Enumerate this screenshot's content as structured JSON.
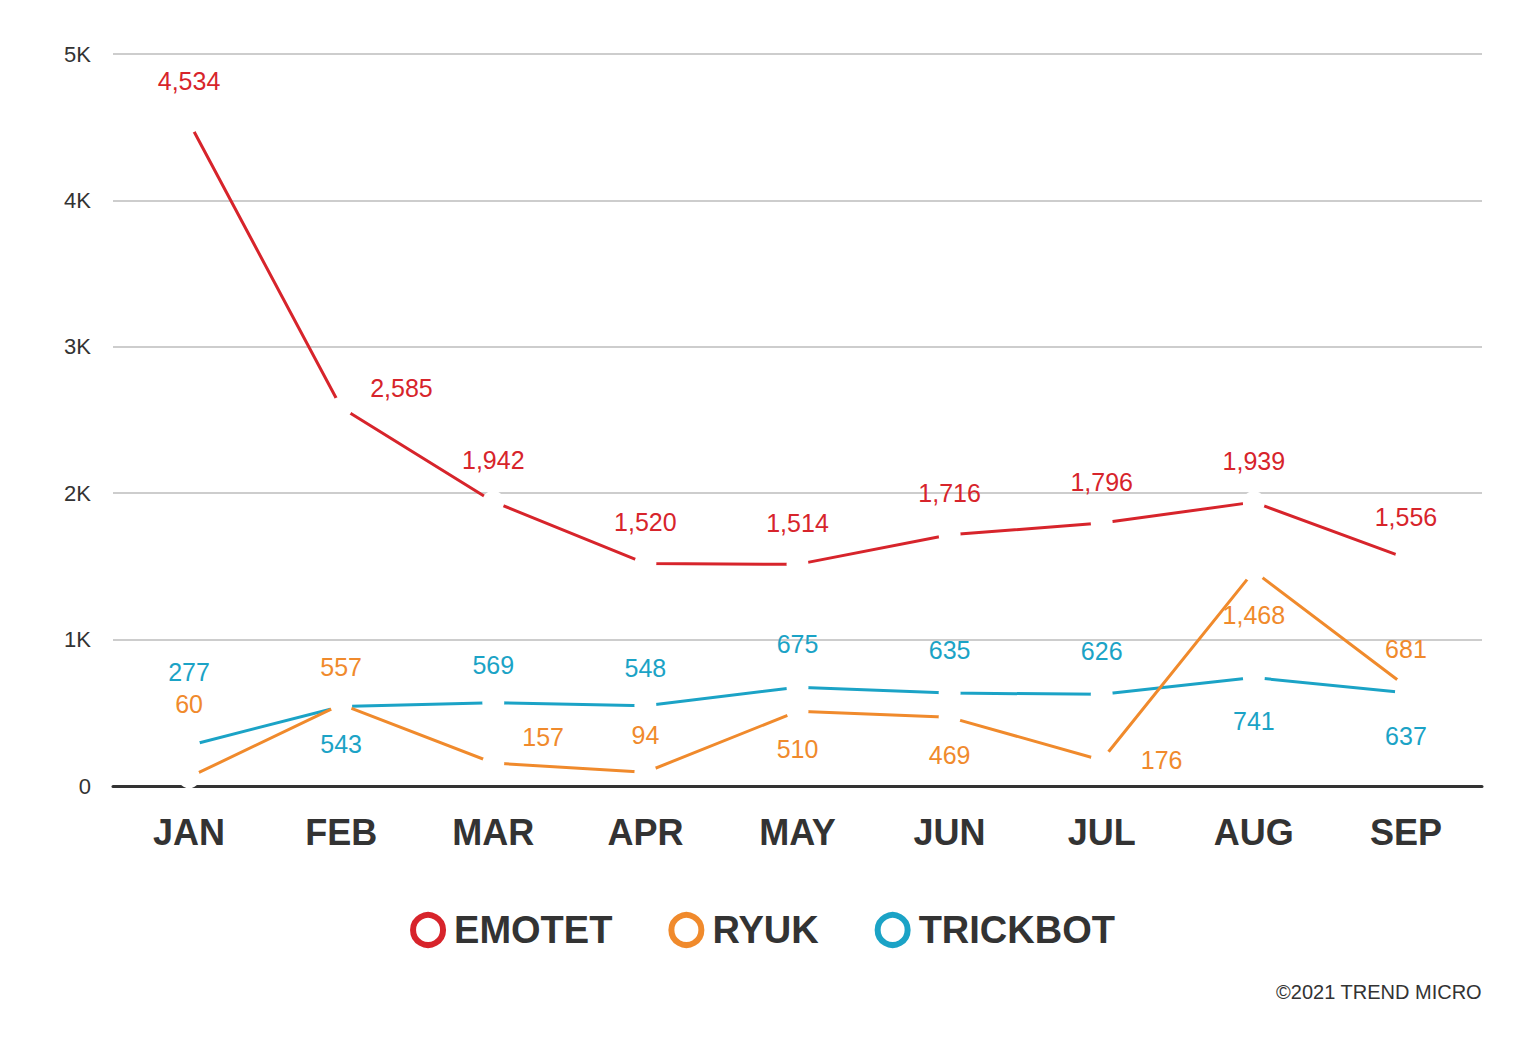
{
  "chart_data": {
    "type": "line",
    "categories": [
      "JAN",
      "FEB",
      "MAR",
      "APR",
      "MAY",
      "JUN",
      "JUL",
      "AUG",
      "SEP"
    ],
    "series": [
      {
        "name": "EMOTET",
        "color": "#d7242b",
        "marker": "circle",
        "values": [
          4534,
          2585,
          1942,
          1520,
          1514,
          1716,
          1796,
          1939,
          1556
        ],
        "value_labels": [
          "4,534",
          "2,585",
          "1,942",
          "1,520",
          "1,514",
          "1,716",
          "1,796",
          "1,939",
          "1,556"
        ]
      },
      {
        "name": "RYUK",
        "color": "#f08a2c",
        "marker": "circle",
        "values": [
          60,
          557,
          157,
          94,
          510,
          469,
          176,
          1468,
          681
        ],
        "value_labels": [
          "60",
          "557",
          "157",
          "94",
          "510",
          "469",
          "176",
          "1,468",
          "681"
        ]
      },
      {
        "name": "TRICKBOT",
        "color": "#1ba3c6",
        "marker": "circle",
        "values": [
          277,
          543,
          569,
          548,
          675,
          635,
          626,
          741,
          637
        ],
        "value_labels": [
          "277",
          "543",
          "569",
          "548",
          "675",
          "635",
          "626",
          "741",
          "637"
        ]
      }
    ],
    "ylim": [
      0,
      5000
    ],
    "yticks": [
      0,
      {
        "value": 1000,
        "label": "1K"
      },
      {
        "value": 2000,
        "label": "2K"
      },
      {
        "value": 3000,
        "label": "3K"
      },
      {
        "value": 4000,
        "label": "4K"
      },
      {
        "value": 5000,
        "label": "5K"
      }
    ],
    "grid": true,
    "legend": "bottom",
    "data_labels": true,
    "annotations": [
      "©2021 TREND MICRO"
    ]
  }
}
